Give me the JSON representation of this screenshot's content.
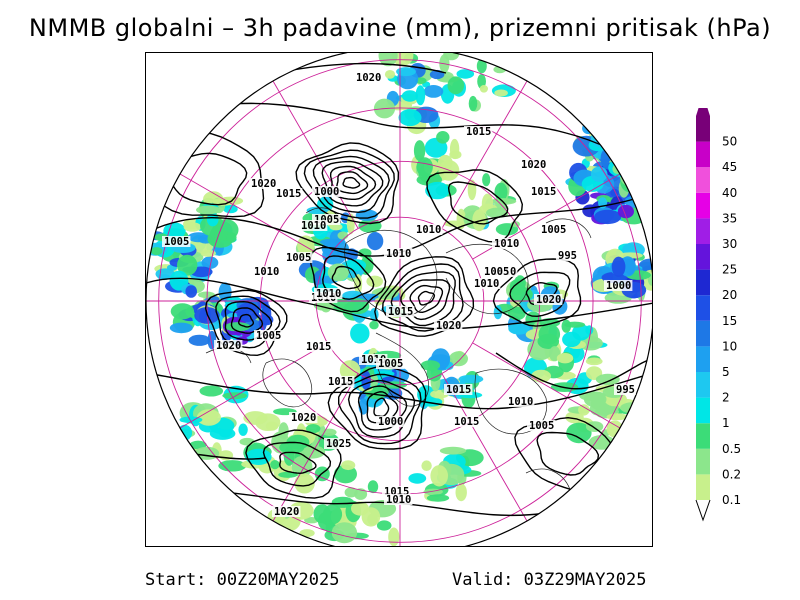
{
  "title": "NMMB globalni – 3h padavine (mm), prizemni pritisak (hPa)",
  "footer": {
    "start": "Start: 00Z20MAY2025",
    "valid": "Valid: 03Z29MAY2025"
  },
  "colors": {
    "contour": "#000000",
    "graticule": "#cc2299",
    "coast": "#222222"
  },
  "legend": [
    {
      "label": "0.1",
      "color": "#c8f08c"
    },
    {
      "label": "0.2",
      "color": "#8ce68c"
    },
    {
      "label": "0.5",
      "color": "#3cdc78"
    },
    {
      "label": "1",
      "color": "#00e6e6"
    },
    {
      "label": "2",
      "color": "#1ec8f0"
    },
    {
      "label": "5",
      "color": "#1ea0f0"
    },
    {
      "label": "10",
      "color": "#1e78e6"
    },
    {
      "label": "15",
      "color": "#1e50e6"
    },
    {
      "label": "20",
      "color": "#1e28d2"
    },
    {
      "label": "25",
      "color": "#6414dc"
    },
    {
      "label": "30",
      "color": "#a01ee6"
    },
    {
      "label": "35",
      "color": "#e600e6"
    },
    {
      "label": "40",
      "color": "#f050dc"
    },
    {
      "label": "45",
      "color": "#c800c8"
    },
    {
      "label": "50",
      "color": "#780078"
    }
  ],
  "isobar_labels": [
    "1020",
    "1015",
    "1020",
    "1020",
    "1015",
    "1000",
    "1005",
    "1010",
    "1005",
    "1010",
    "1005",
    "1010",
    "1010",
    "1015",
    "1010",
    "1010",
    "1005",
    "1010",
    "995",
    "1000",
    "1015",
    "1020",
    "1020",
    "1010",
    "1005",
    "1020",
    "1015",
    "1010",
    "1005",
    "1015",
    "1015",
    "1000",
    "1010",
    "1015",
    "1005",
    "995",
    "1020",
    "1025",
    "1015",
    "1010",
    "1020",
    "1010",
    "1005"
  ]
}
